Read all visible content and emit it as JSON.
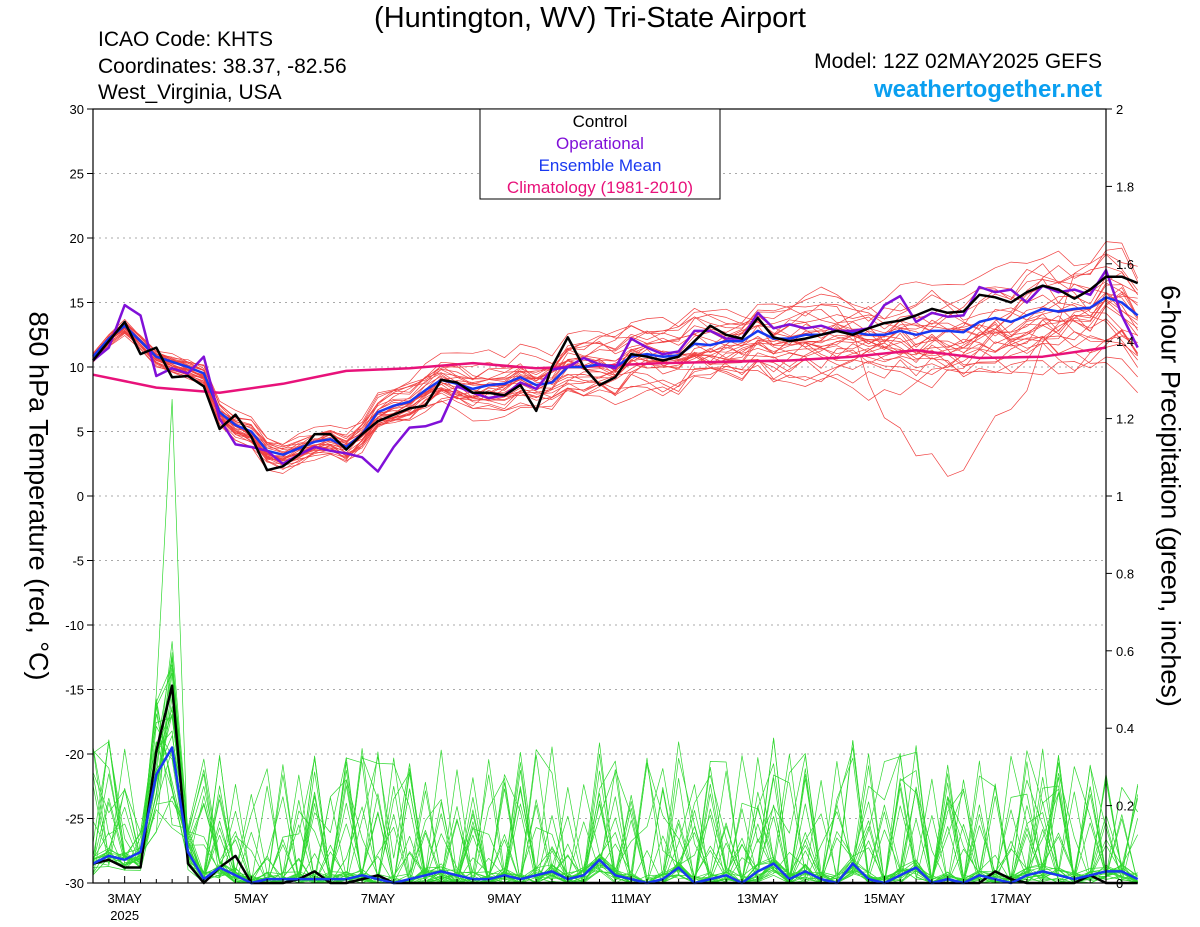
{
  "header": {
    "title": "(Huntington, WV) Tri-State Airport",
    "icao": "ICAO Code: KHTS",
    "coordinates": "Coordinates: 38.37, -82.56",
    "region": "West_Virginia, USA",
    "model": "Model: 12Z 02MAY2025 GEFS",
    "site": "weathertogether.net"
  },
  "colors": {
    "control": "#000000",
    "operational": "#8010d8",
    "ensemble_mean": "#1838f0",
    "climatology": "#e8127a",
    "temp_members": "#f04040",
    "precip_members": "#30d830",
    "site": "#0a9ff0"
  },
  "chart_data": {
    "type": "line",
    "title": "(Huntington, WV) Tri-State Airport",
    "ylabel": "850 hPa Temperature (red, °C)",
    "ylabel2": "6-hour Precipitation (green, inches)",
    "ylim": [
      -30,
      30
    ],
    "y2lim": [
      0,
      2
    ],
    "yticks": [
      30,
      25,
      20,
      15,
      10,
      5,
      0,
      -5,
      -10,
      -15,
      -20,
      -25,
      -30
    ],
    "y2ticks": [
      "2",
      "1.8",
      "1.6",
      "1.4",
      "1.2",
      "1",
      "0.8",
      "0.6",
      "0.4",
      "0.2",
      "0"
    ],
    "xlim": [
      0,
      16.0
    ],
    "x_unit": "days after 2025-05-02 12Z",
    "xticks": [
      {
        "x": 0.5,
        "label": "3MAY",
        "sub": "2025"
      },
      {
        "x": 2.5,
        "label": "5MAY",
        "sub": ""
      },
      {
        "x": 4.5,
        "label": "7MAY",
        "sub": ""
      },
      {
        "x": 6.5,
        "label": "9MAY",
        "sub": ""
      },
      {
        "x": 8.5,
        "label": "11MAY",
        "sub": ""
      },
      {
        "x": 10.5,
        "label": "13MAY",
        "sub": ""
      },
      {
        "x": 12.5,
        "label": "15MAY",
        "sub": ""
      },
      {
        "x": 14.5,
        "label": "17MAY",
        "sub": ""
      }
    ],
    "legend": {
      "position": "top-center",
      "entries": [
        {
          "label": "Control",
          "color": "#000000"
        },
        {
          "label": "Operational",
          "color": "#8010d8"
        },
        {
          "label": "Ensemble Mean",
          "color": "#1838f0"
        },
        {
          "label": "Climatology (1981-2010)",
          "color": "#e8127a"
        }
      ]
    },
    "temperature": {
      "control": [
        10.5,
        12.0,
        13.5,
        11.0,
        11.5,
        9.2,
        9.3,
        8.5,
        5.2,
        6.3,
        4.6,
        2.0,
        2.3,
        3.2,
        4.8,
        4.8,
        3.6,
        4.8,
        5.8,
        6.3,
        6.8,
        7.0,
        9.0,
        8.8,
        8.0,
        8.0,
        7.8,
        8.6,
        6.6,
        10.0,
        12.3,
        10.0,
        8.6,
        9.2,
        11.0,
        10.8,
        10.5,
        10.8,
        12.0,
        13.2,
        12.5,
        12.2,
        13.8,
        12.3,
        12.0,
        12.2,
        12.5,
        12.8,
        12.5,
        13.0,
        13.4,
        13.6,
        14.0,
        14.5,
        14.2,
        14.3,
        15.6,
        15.4,
        15.0,
        15.8,
        16.3,
        16.0,
        15.3,
        16.0,
        17.0,
        17.0,
        16.5
      ],
      "operational": [
        10.5,
        11.5,
        14.8,
        14.0,
        9.3,
        9.9,
        9.5,
        10.8,
        6.0,
        4.0,
        3.8,
        3.5,
        2.5,
        3.2,
        3.8,
        3.5,
        3.3,
        3.0,
        1.9,
        3.8,
        5.3,
        5.4,
        5.8,
        8.5,
        8.0,
        7.6,
        7.8,
        8.8,
        8.3,
        9.8,
        10.0,
        10.7,
        10.2,
        9.9,
        12.2,
        11.5,
        11.0,
        11.2,
        12.8,
        12.8,
        12.2,
        12.2,
        14.2,
        13.0,
        13.3,
        13.0,
        13.2,
        12.8,
        12.8,
        13.0,
        14.8,
        15.5,
        13.5,
        14.2,
        13.9,
        14.0,
        16.2,
        15.8,
        16.0,
        15.0,
        16.3,
        15.8,
        16.0,
        15.6,
        17.5,
        14.0,
        11.5
      ],
      "ensemble_mean": [
        10.8,
        12.2,
        13.2,
        12.0,
        10.8,
        10.4,
        10.0,
        9.5,
        6.5,
        5.5,
        5.0,
        3.5,
        3.2,
        3.7,
        4.2,
        4.4,
        3.8,
        4.8,
        6.5,
        7.0,
        7.3,
        8.2,
        9.0,
        8.7,
        8.3,
        8.6,
        8.7,
        9.2,
        8.6,
        8.8,
        10.0,
        10.0,
        10.2,
        10.0,
        10.8,
        11.0,
        10.8,
        10.9,
        11.8,
        11.7,
        12.0,
        12.0,
        12.8,
        12.2,
        12.2,
        12.5,
        12.5,
        12.8,
        12.7,
        12.5,
        12.5,
        12.8,
        12.5,
        12.8,
        12.8,
        12.7,
        13.5,
        13.8,
        13.5,
        14.0,
        14.5,
        14.3,
        14.5,
        14.6,
        15.4,
        15.0,
        14.0
      ],
      "climatology": [
        [
          0.0,
          9.4
        ],
        [
          1.0,
          8.4
        ],
        [
          2.0,
          8.0
        ],
        [
          3.0,
          8.7
        ],
        [
          4.0,
          9.7
        ],
        [
          5.0,
          9.9
        ],
        [
          6.0,
          10.3
        ],
        [
          7.0,
          9.9
        ],
        [
          8.0,
          10.1
        ],
        [
          9.0,
          10.3
        ],
        [
          10.0,
          10.4
        ],
        [
          11.0,
          10.5
        ],
        [
          12.0,
          10.8
        ],
        [
          13.0,
          11.3
        ],
        [
          14.0,
          10.7
        ],
        [
          15.0,
          10.8
        ],
        [
          16.0,
          11.5
        ]
      ]
    },
    "precipitation": {
      "control": [
        0.05,
        0.06,
        0.04,
        0.04,
        0.34,
        0.51,
        0.05,
        0.0,
        0.04,
        0.07,
        0.0,
        0.0,
        0.0,
        0.01,
        0.03,
        0.0,
        0.0,
        0.01,
        0.02,
        0.0,
        0.0,
        0.0,
        0.0,
        0.0,
        0.0,
        0.0,
        0.0,
        0.0,
        0.0,
        0.0,
        0.0,
        0.0,
        0.0,
        0.0,
        0.0,
        0.0,
        0.0,
        0.0,
        0.0,
        0.0,
        0.0,
        0.0,
        0.0,
        0.0,
        0.0,
        0.0,
        0.0,
        0.0,
        0.0,
        0.0,
        0.0,
        0.0,
        0.0,
        0.0,
        0.0,
        0.0,
        0.0,
        0.03,
        0.01,
        0.0,
        0.0,
        0.0,
        0.0,
        0.02,
        0.0,
        0.0,
        0.0
      ],
      "ensemble_mean": [
        0.05,
        0.07,
        0.06,
        0.08,
        0.28,
        0.35,
        0.08,
        0.01,
        0.04,
        0.02,
        0.0,
        0.01,
        0.01,
        0.01,
        0.01,
        0.01,
        0.01,
        0.02,
        0.01,
        0.0,
        0.01,
        0.02,
        0.03,
        0.02,
        0.01,
        0.01,
        0.02,
        0.01,
        0.02,
        0.03,
        0.01,
        0.02,
        0.06,
        0.02,
        0.01,
        0.0,
        0.01,
        0.04,
        0.0,
        0.01,
        0.02,
        0.0,
        0.03,
        0.05,
        0.01,
        0.03,
        0.01,
        0.0,
        0.05,
        0.01,
        0.0,
        0.02,
        0.04,
        0.0,
        0.01,
        0.0,
        0.02,
        0.01,
        0.0,
        0.02,
        0.03,
        0.02,
        0.01,
        0.02,
        0.03,
        0.03,
        0.01
      ]
    },
    "members": {
      "temperature_count": 30,
      "precipitation_count": 30
    }
  }
}
